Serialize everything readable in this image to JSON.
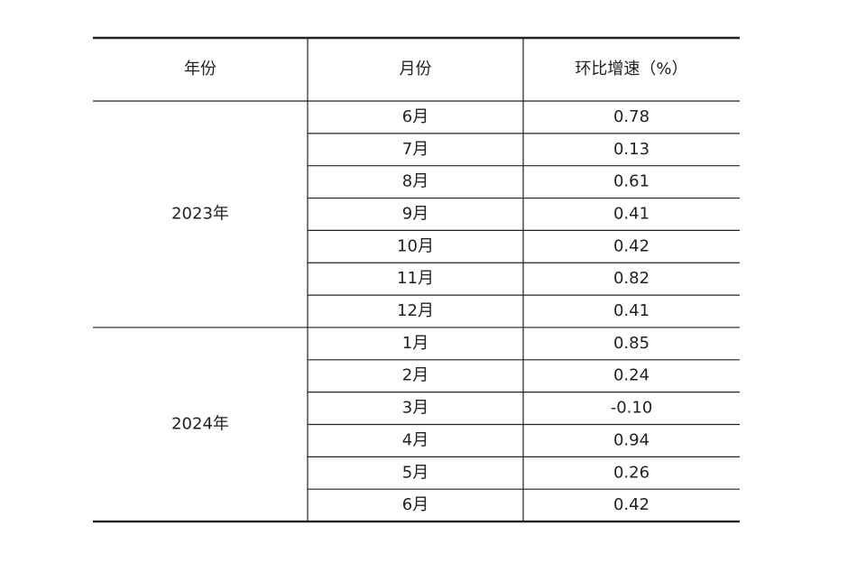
{
  "table": {
    "header": [
      "年份",
      "月份",
      "环比增速（%）"
    ],
    "groups": [
      {
        "year": "2023年",
        "rows": [
          {
            "month": "6月",
            "value": "0.78"
          },
          {
            "month": "7月",
            "value": "0.13"
          },
          {
            "month": "8月",
            "value": "0.61"
          },
          {
            "month": "9月",
            "value": "0.41"
          },
          {
            "month": "10月",
            "value": "0.42"
          },
          {
            "month": "11月",
            "value": "0.82"
          },
          {
            "month": "12月",
            "value": "0.41"
          }
        ]
      },
      {
        "year": "2024年",
        "rows": [
          {
            "month": "1月",
            "value": "0.85"
          },
          {
            "month": "2月",
            "value": "0.24"
          },
          {
            "month": "3月",
            "value": "-0.10"
          },
          {
            "month": "4月",
            "value": "0.94"
          },
          {
            "month": "5月",
            "value": "0.26"
          },
          {
            "month": "6月",
            "value": "0.42"
          }
        ]
      }
    ]
  }
}
